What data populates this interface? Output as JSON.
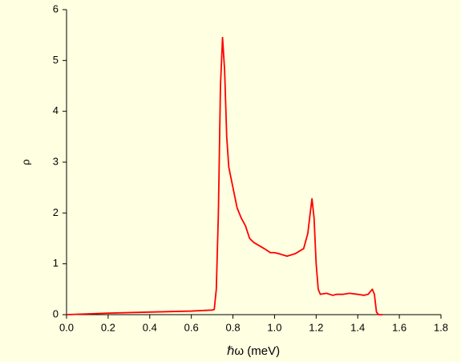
{
  "chart_data": {
    "type": "line",
    "x_label": "ℏω (meV)",
    "y_label": "ρ",
    "x": [
      0,
      0.2,
      0.4,
      0.6,
      0.7,
      0.71,
      0.72,
      0.73,
      0.74,
      0.75,
      0.76,
      0.77,
      0.78,
      0.8,
      0.82,
      0.84,
      0.86,
      0.88,
      0.9,
      0.95,
      0.98,
      1.0,
      1.02,
      1.06,
      1.1,
      1.12,
      1.14,
      1.16,
      1.17,
      1.18,
      1.19,
      1.2,
      1.21,
      1.22,
      1.25,
      1.28,
      1.3,
      1.33,
      1.36,
      1.4,
      1.43,
      1.45,
      1.47,
      1.48,
      1.49,
      1.5,
      1.52
    ],
    "values": [
      0,
      0.03,
      0.05,
      0.07,
      0.09,
      0.1,
      0.5,
      2,
      4.5,
      5.45,
      4.8,
      3.5,
      2.9,
      2.5,
      2.1,
      1.9,
      1.75,
      1.5,
      1.42,
      1.3,
      1.22,
      1.22,
      1.2,
      1.15,
      1.2,
      1.25,
      1.3,
      1.6,
      1.95,
      2.28,
      1.9,
      1.0,
      0.5,
      0.4,
      0.42,
      0.38,
      0.4,
      0.4,
      0.42,
      0.4,
      0.38,
      0.4,
      0.5,
      0.4,
      0.05,
      0,
      0
    ],
    "color": "#ff0000",
    "xlim": [
      0,
      1.8
    ],
    "xticks": [
      {
        "value": 0,
        "label": "0.0"
      },
      0.2,
      0.4,
      0.6,
      0.8,
      {
        "value": 1,
        "label": "1.0"
      },
      1.2,
      1.4,
      1.6,
      1.8
    ],
    "ylim": [
      0,
      6
    ],
    "yticks": [
      0,
      1,
      2,
      3,
      4,
      5,
      6
    ]
  }
}
